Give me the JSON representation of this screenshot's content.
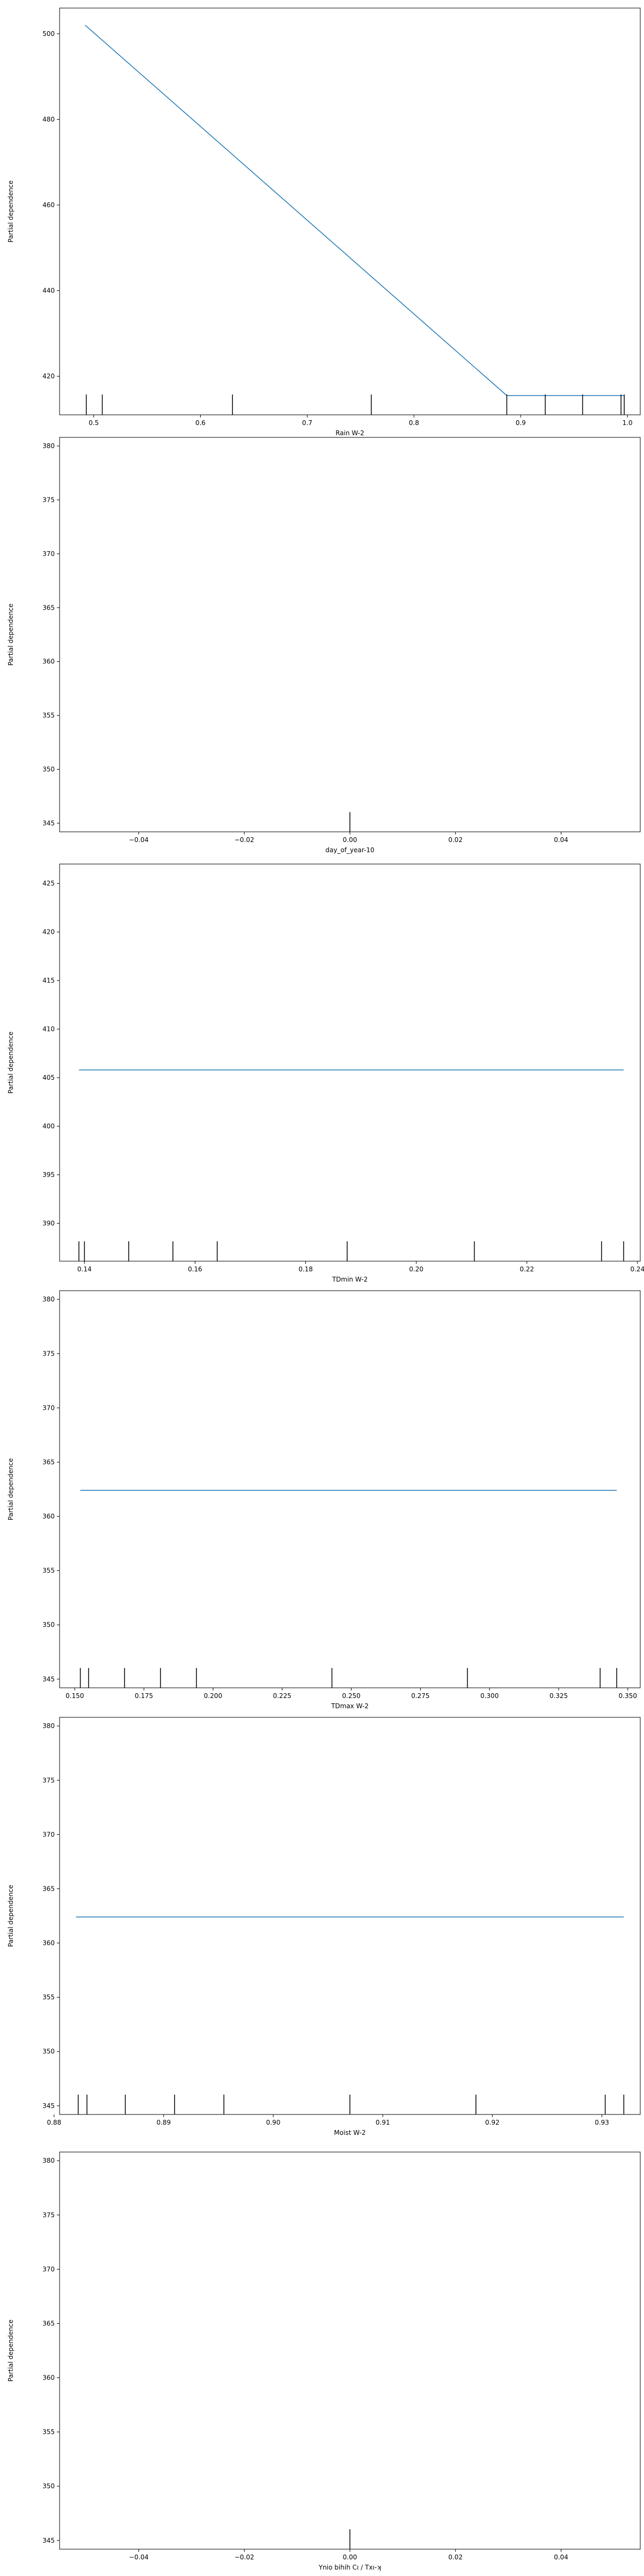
{
  "chart_data": [
    {
      "type": "line",
      "xlabel": "Rain W-2",
      "ylabel": "Partial dependence",
      "xlim": [
        0.468,
        1.012
      ],
      "ylim": [
        411,
        506
      ],
      "xticks": [
        0.5,
        0.6,
        0.7,
        0.8,
        0.9,
        1.0
      ],
      "xtick_labels": [
        "0.5",
        "0.6",
        "0.7",
        "0.8",
        "0.9",
        "1.0"
      ],
      "yticks": [
        420,
        440,
        460,
        480,
        500
      ],
      "ytick_labels": [
        "420",
        "440",
        "460",
        "480",
        "500"
      ],
      "series": [
        {
          "x": [
            0.492,
            0.887,
            0.997
          ],
          "y": [
            502.0,
            415.5,
            415.5
          ]
        }
      ],
      "rug": [
        0.493,
        0.508,
        0.63,
        0.76,
        0.887,
        0.923,
        0.958,
        0.994,
        0.997
      ],
      "grid": false,
      "colors": {
        "line": "#1f77b4",
        "rug": "#000000"
      }
    },
    {
      "type": "line",
      "xlabel": "day_of_year-10",
      "ylabel": "Partial dependence",
      "xlim": [
        -0.055,
        0.055
      ],
      "ylim": [
        344.2,
        380.8
      ],
      "xticks": [
        -0.04,
        -0.02,
        0.0,
        0.02,
        0.04
      ],
      "xtick_labels": [
        "−0.04",
        "−0.02",
        "0.00",
        "0.02",
        "0.04"
      ],
      "yticks": [
        345,
        350,
        355,
        360,
        365,
        370,
        375,
        380
      ],
      "ytick_labels": [
        "345",
        "350",
        "355",
        "360",
        "365",
        "370",
        "375",
        "380"
      ],
      "series": [],
      "rug": [
        0.0
      ],
      "grid": false,
      "colors": {
        "line": "#1f77b4",
        "rug": "#000000"
      }
    },
    {
      "type": "line",
      "xlabel": "TDmin W-2",
      "ylabel": "Partial dependence",
      "xlim": [
        0.1355,
        0.2405
      ],
      "ylim": [
        386.1,
        427
      ],
      "xticks": [
        0.14,
        0.16,
        0.18,
        0.2,
        0.22,
        0.24
      ],
      "xtick_labels": [
        "0.14",
        "0.16",
        "0.18",
        "0.20",
        "0.22",
        "0.24"
      ],
      "yticks": [
        390,
        395,
        400,
        405,
        410,
        415,
        420,
        425
      ],
      "ytick_labels": [
        "390",
        "395",
        "400",
        "405",
        "410",
        "415",
        "420",
        "425"
      ],
      "series": [
        {
          "x": [
            0.139,
            0.2375
          ],
          "y": [
            405.8,
            405.8
          ]
        }
      ],
      "rug": [
        0.139,
        0.14,
        0.148,
        0.156,
        0.164,
        0.1875,
        0.2105,
        0.2335,
        0.2375
      ],
      "grid": false,
      "colors": {
        "line": "#1f77b4",
        "rug": "#000000"
      }
    },
    {
      "type": "line",
      "xlabel": "TDmax W-2",
      "ylabel": "Partial dependence",
      "xlim": [
        0.1445,
        0.3545
      ],
      "ylim": [
        344.2,
        380.8
      ],
      "xticks": [
        0.15,
        0.175,
        0.2,
        0.225,
        0.25,
        0.275,
        0.3,
        0.325,
        0.35
      ],
      "xtick_labels": [
        "0.150",
        "0.175",
        "0.200",
        "0.225",
        "0.250",
        "0.275",
        "0.300",
        "0.325",
        "0.350"
      ],
      "yticks": [
        345,
        350,
        355,
        360,
        365,
        370,
        375,
        380
      ],
      "ytick_labels": [
        "345",
        "350",
        "355",
        "360",
        "365",
        "370",
        "375",
        "380"
      ],
      "series": [
        {
          "x": [
            0.152,
            0.346
          ],
          "y": [
            362.4,
            362.4
          ]
        }
      ],
      "rug": [
        0.152,
        0.155,
        0.168,
        0.181,
        0.194,
        0.243,
        0.292,
        0.34,
        0.346
      ],
      "grid": false,
      "colors": {
        "line": "#1f77b4",
        "rug": "#000000"
      }
    },
    {
      "type": "line",
      "xlabel": "Moist W-2",
      "ylabel": "Partial dependence",
      "xlim": [
        0.8805,
        0.9335
      ],
      "ylim": [
        344.2,
        380.8
      ],
      "xticks": [
        0.88,
        0.89,
        0.9,
        0.91,
        0.92,
        0.93
      ],
      "xtick_labels": [
        "0.88",
        "0.89",
        "0.90",
        "0.91",
        "0.92",
        "0.93"
      ],
      "yticks": [
        345,
        350,
        355,
        360,
        365,
        370,
        375,
        380
      ],
      "ytick_labels": [
        "345",
        "350",
        "355",
        "360",
        "365",
        "370",
        "375",
        "380"
      ],
      "series": [
        {
          "x": [
            0.882,
            0.932
          ],
          "y": [
            362.4,
            362.4
          ]
        }
      ],
      "rug": [
        0.8822,
        0.883,
        0.8865,
        0.891,
        0.8955,
        0.907,
        0.9185,
        0.9303,
        0.932
      ],
      "grid": false,
      "colors": {
        "line": "#1f77b4",
        "rug": "#000000"
      }
    },
    {
      "type": "line",
      "xlabel": "Ynio bihih Cı / Txı-ʞ",
      "ylabel": "Partial dependence",
      "xlim": [
        -0.055,
        0.055
      ],
      "ylim": [
        344.2,
        380.8
      ],
      "xticks": [
        -0.04,
        -0.02,
        0.0,
        0.02,
        0.04
      ],
      "xtick_labels": [
        "−0.04",
        "−0.02",
        "0.00",
        "0.02",
        "0.04"
      ],
      "yticks": [
        345,
        350,
        355,
        360,
        365,
        370,
        375,
        380
      ],
      "ytick_labels": [
        "345",
        "350",
        "355",
        "360",
        "365",
        "370",
        "375",
        "380"
      ],
      "series": [],
      "rug": [
        0.0
      ],
      "grid": false,
      "colors": {
        "line": "#1f77b4",
        "rug": "#000000"
      }
    }
  ]
}
